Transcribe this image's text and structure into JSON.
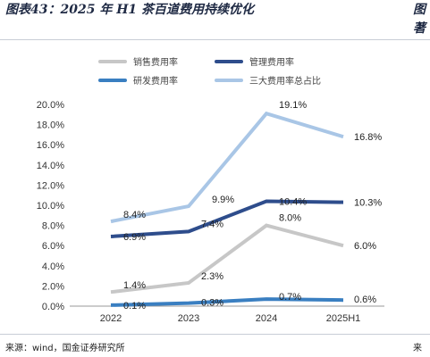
{
  "header": {
    "title": "图表43：2025 年 H1 茶百道费用持续优化",
    "right_fragment_1": "图",
    "right_fragment_2": "著"
  },
  "footer": {
    "source": "来源：wind，国金证券研究所",
    "right_fragment": "来"
  },
  "chart_data": {
    "type": "line",
    "categories": [
      "2022",
      "2023",
      "2024",
      "2025H1"
    ],
    "ylim": [
      0,
      20
    ],
    "yticks": [
      "0.0%",
      "2.0%",
      "4.0%",
      "6.0%",
      "8.0%",
      "10.0%",
      "12.0%",
      "14.0%",
      "16.0%",
      "18.0%",
      "20.0%"
    ],
    "grid": false,
    "legend_placement": "top",
    "series": [
      {
        "name": "销售费用率",
        "color": "#c7c7c7",
        "values": [
          1.4,
          2.3,
          8.0,
          6.0
        ],
        "labels": [
          "1.4%",
          "2.3%",
          "8.0%",
          "6.0%"
        ]
      },
      {
        "name": "管理费用率",
        "color": "#2e4d8c",
        "values": [
          6.9,
          7.4,
          10.4,
          10.3
        ],
        "labels": [
          "6.9%",
          "7.4%",
          "10.4%",
          "10.3%"
        ]
      },
      {
        "name": "研发费用率",
        "color": "#3a7fc1",
        "values": [
          0.1,
          0.3,
          0.7,
          0.6
        ],
        "labels": [
          "0.1%",
          "0.3%",
          "0.7%",
          "0.6%"
        ]
      },
      {
        "name": "三大费用率总占比",
        "color": "#a9c6e6",
        "values": [
          8.4,
          9.9,
          19.1,
          16.8
        ],
        "labels": [
          "8.4%",
          "9.9%",
          "19.1%",
          "16.8%"
        ]
      }
    ]
  }
}
